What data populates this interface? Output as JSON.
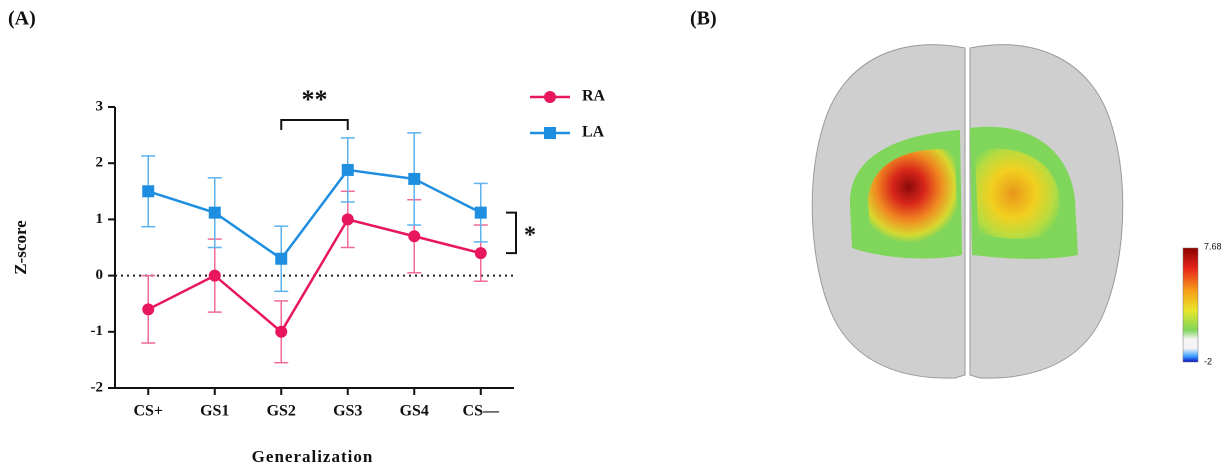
{
  "chart_data": {
    "type": "line",
    "panel_label": "(A)",
    "x_label": "Generalization",
    "y_label": "Z-score",
    "categories": [
      "CS+",
      "GS1",
      "GS2",
      "GS3",
      "GS4",
      "CS—"
    ],
    "series": [
      {
        "name": "RA",
        "color": "#e8175d",
        "error_color": "#f06a98",
        "marker": "circle",
        "values": [
          -0.6,
          0,
          -1.0,
          1.0,
          0.7,
          0.4
        ],
        "errors": [
          0.6,
          0.65,
          0.55,
          0.5,
          0.65,
          0.5
        ]
      },
      {
        "name": "LA",
        "color": "#1e8fe0",
        "error_color": "#5cb3ee",
        "marker": "square",
        "values": [
          1.5,
          1.12,
          0.3,
          1.88,
          1.72,
          1.12
        ],
        "errors": [
          0.63,
          0.62,
          0.58,
          0.57,
          0.82,
          0.52
        ]
      }
    ],
    "ylim": [
      -2,
      3
    ],
    "yticks": [
      -2,
      -1,
      0,
      1,
      2,
      3
    ],
    "zero_line": true,
    "legend": "top-right",
    "annotations": [
      "**",
      "*"
    ]
  },
  "panel_b": {
    "panel_label": "(B)",
    "colorbar": {
      "max": 7.68,
      "min": -2
    }
  }
}
